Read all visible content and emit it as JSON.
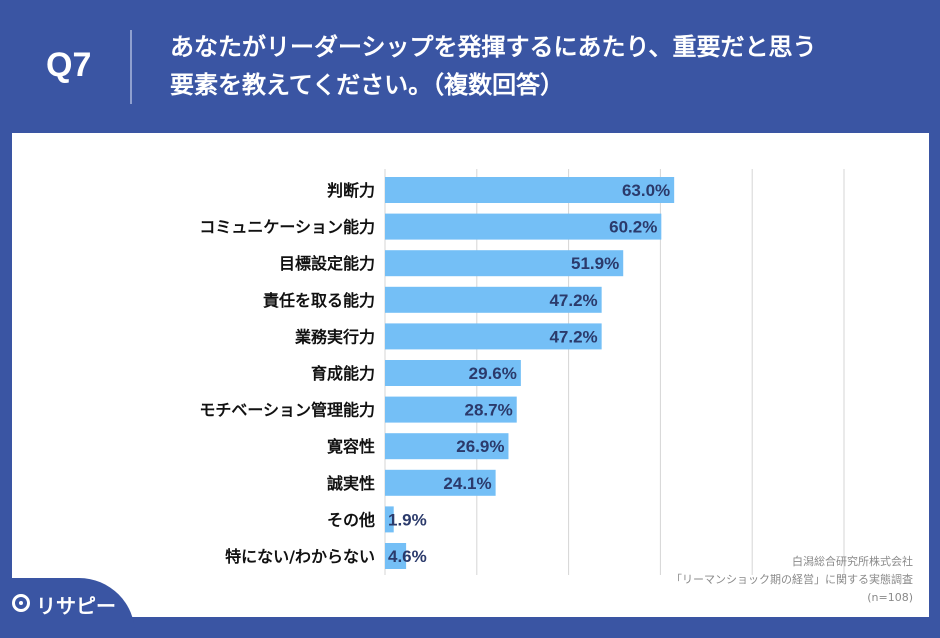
{
  "header": {
    "question_number": "Q7",
    "question_text_line1": "あなたがリーダーシップを発揮するにあたり、重要だと思う",
    "question_text_line2": "要素を教えてください。（複数回答）"
  },
  "chart_data": {
    "type": "bar",
    "orientation": "horizontal",
    "categories": [
      "判断力",
      "コミュニケーション能力",
      "目標設定能力",
      "責任を取る能力",
      "業務実行力",
      "育成能力",
      "モチベーション管理能力",
      "寛容性",
      "誠実性",
      "その他",
      "特にない/わからない"
    ],
    "values": [
      63.0,
      60.2,
      51.9,
      47.2,
      47.2,
      29.6,
      28.7,
      26.9,
      24.1,
      1.9,
      4.6
    ],
    "value_labels": [
      "63.0%",
      "60.2%",
      "51.9%",
      "47.2%",
      "47.2%",
      "29.6%",
      "28.7%",
      "26.9%",
      "24.1%",
      "1.9%",
      "4.6%"
    ],
    "xlim": [
      0,
      100
    ],
    "grid": true,
    "bar_color": "#74bff6"
  },
  "source": {
    "line1": "白潟総合研究所株式会社",
    "line2": "「リーマンショック期の経営」に関する実態調査",
    "line3": "(n=108)"
  },
  "brand": {
    "name": "リサピー",
    "icon": "pin-circle-icon"
  },
  "colors": {
    "header_bg": "#3a55a3",
    "panel_bg": "#ffffff"
  }
}
